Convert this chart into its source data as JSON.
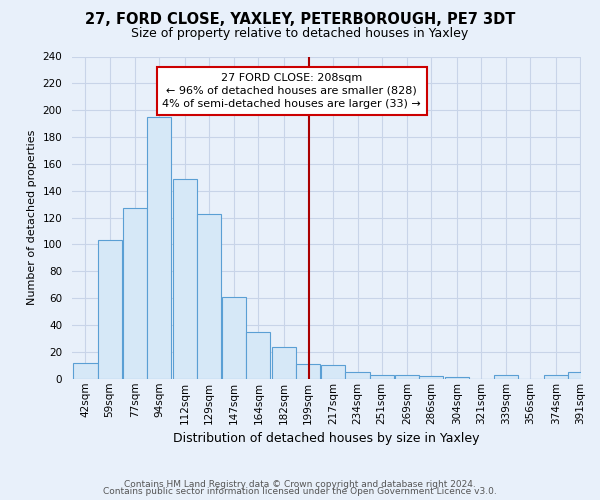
{
  "title": "27, FORD CLOSE, YAXLEY, PETERBOROUGH, PE7 3DT",
  "subtitle": "Size of property relative to detached houses in Yaxley",
  "xlabel": "Distribution of detached houses by size in Yaxley",
  "ylabel": "Number of detached properties",
  "bin_labels": [
    "42sqm",
    "59sqm",
    "77sqm",
    "94sqm",
    "112sqm",
    "129sqm",
    "147sqm",
    "164sqm",
    "182sqm",
    "199sqm",
    "217sqm",
    "234sqm",
    "251sqm",
    "269sqm",
    "286sqm",
    "304sqm",
    "321sqm",
    "339sqm",
    "356sqm",
    "374sqm",
    "391sqm"
  ],
  "bin_values": [
    12,
    103,
    127,
    195,
    149,
    123,
    61,
    35,
    24,
    11,
    10,
    5,
    3,
    3,
    2,
    1,
    0,
    3,
    0,
    3,
    5
  ],
  "bar_color": "#d6e8f7",
  "bar_edge_color": "#5a9fd4",
  "property_line_color": "#aa0000",
  "annotation_title": "27 FORD CLOSE: 208sqm",
  "annotation_line1": "← 96% of detached houses are smaller (828)",
  "annotation_line2": "4% of semi-detached houses are larger (33) →",
  "annotation_box_color": "#ffffff",
  "annotation_box_edge": "#cc0000",
  "ylim": [
    0,
    240
  ],
  "yticks": [
    0,
    20,
    40,
    60,
    80,
    100,
    120,
    140,
    160,
    180,
    200,
    220,
    240
  ],
  "footnote1": "Contains HM Land Registry data © Crown copyright and database right 2024.",
  "footnote2": "Contains public sector information licensed under the Open Government Licence v3.0.",
  "background_color": "#e8f0fa",
  "grid_color": "#c8d4e8",
  "title_fontsize": 10.5,
  "subtitle_fontsize": 9,
  "ylabel_fontsize": 8,
  "xlabel_fontsize": 9,
  "tick_fontsize": 7.5,
  "footnote_fontsize": 6.5
}
